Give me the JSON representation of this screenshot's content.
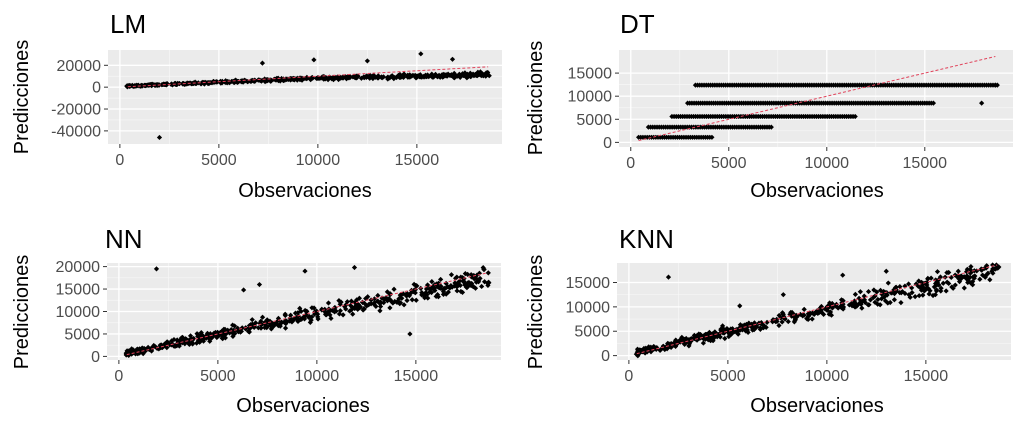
{
  "chart_data": [
    {
      "type": "scatter",
      "title": "LM",
      "xlabel": "Observaciones",
      "ylabel": "Predicciones",
      "xlim": [
        -600,
        19300
      ],
      "ylim": [
        -52000,
        34000
      ],
      "xticks": [
        0,
        5000,
        10000,
        15000
      ],
      "yticks": [
        -40000,
        -20000,
        0,
        20000
      ],
      "ytick_labels": [
        "-40000",
        "-20000",
        "0",
        "20000"
      ],
      "reference_line": {
        "x": [
          400,
          18600
        ],
        "y": [
          400,
          18600
        ],
        "color": "#e0425a",
        "style": "dashed"
      },
      "point_cloud": {
        "x_range": [
          350,
          18700
        ],
        "slope": 0.75,
        "intercept": 700,
        "spread": 2200,
        "x_break": 10000,
        "slope_after": 0.4
      },
      "outliers": [
        {
          "x": 2000,
          "y": -46000
        },
        {
          "x": 15200,
          "y": 30500
        },
        {
          "x": 7200,
          "y": 22000
        },
        {
          "x": 9800,
          "y": 25000
        },
        {
          "x": 12500,
          "y": 24000
        },
        {
          "x": 16800,
          "y": 25500
        }
      ],
      "grid": true,
      "legend": "none"
    },
    {
      "type": "scatter",
      "title": "DT",
      "xlabel": "Observaciones",
      "ylabel": "Predicciones",
      "xlim": [
        -600,
        19500
      ],
      "ylim": [
        -1000,
        20000
      ],
      "xticks": [
        0,
        5000,
        10000,
        15000
      ],
      "yticks": [
        0,
        5000,
        10000,
        15000
      ],
      "ytick_labels": [
        "0",
        "5000",
        "10000",
        "15000"
      ],
      "reference_line": {
        "x": [
          400,
          18600
        ],
        "y": [
          400,
          18600
        ],
        "color": "#e0425a",
        "style": "dashed"
      },
      "levels": [
        {
          "y": 1100,
          "x_range": [
            400,
            4200
          ]
        },
        {
          "y": 3300,
          "x_range": [
            900,
            7200
          ]
        },
        {
          "y": 5600,
          "x_range": [
            2100,
            11500
          ]
        },
        {
          "y": 8500,
          "x_range": [
            2900,
            15500
          ]
        },
        {
          "y": 12400,
          "x_range": [
            3300,
            18700
          ]
        }
      ],
      "outliers": [
        {
          "x": 17900,
          "y": 8500
        },
        {
          "x": 18600,
          "y": 12400
        }
      ],
      "grid": true,
      "legend": "none"
    },
    {
      "type": "scatter",
      "title": "NN",
      "xlabel": "Observaciones",
      "ylabel": "Predicciones",
      "xlim": [
        -600,
        19300
      ],
      "ylim": [
        -800,
        20800
      ],
      "xticks": [
        0,
        5000,
        10000,
        15000
      ],
      "yticks": [
        0,
        5000,
        10000,
        15000,
        20000
      ],
      "ytick_labels": [
        "0",
        "5000",
        "10000",
        "15000",
        "20000"
      ],
      "reference_line": {
        "x": [
          400,
          18600
        ],
        "y": [
          400,
          18600
        ],
        "color": "#e0425a",
        "style": "dashed"
      },
      "point_cloud": {
        "x_range": [
          350,
          18700
        ],
        "slope": 0.93,
        "intercept": 250,
        "spread": 2600,
        "x_break": 100000,
        "slope_after": 0.93
      },
      "outliers": [
        {
          "x": 1900,
          "y": 19500
        },
        {
          "x": 14700,
          "y": 5000
        },
        {
          "x": 11900,
          "y": 19800
        },
        {
          "x": 9400,
          "y": 19000
        },
        {
          "x": 6300,
          "y": 14800
        },
        {
          "x": 7100,
          "y": 16000
        }
      ],
      "grid": true,
      "legend": "none"
    },
    {
      "type": "scatter",
      "title": "KNN",
      "xlabel": "Observaciones",
      "ylabel": "Predicciones",
      "xlim": [
        -600,
        19300
      ],
      "ylim": [
        -900,
        19000
      ],
      "xticks": [
        0,
        5000,
        10000,
        15000
      ],
      "yticks": [
        0,
        5000,
        10000,
        15000
      ],
      "ytick_labels": [
        "0",
        "5000",
        "10000",
        "15000"
      ],
      "reference_line": {
        "x": [
          400,
          18600
        ],
        "y": [
          400,
          18600
        ],
        "color": "#e0425a",
        "style": "dashed"
      },
      "point_cloud": {
        "x_range": [
          350,
          18700
        ],
        "slope": 0.93,
        "intercept": 250,
        "spread": 2300,
        "x_break": 100000,
        "slope_after": 0.93
      },
      "outliers": [
        {
          "x": 2000,
          "y": 16100
        },
        {
          "x": 10800,
          "y": 16500
        },
        {
          "x": 7800,
          "y": 12500
        },
        {
          "x": 13000,
          "y": 17300
        },
        {
          "x": 5600,
          "y": 10200
        }
      ],
      "grid": true,
      "legend": "none"
    }
  ]
}
